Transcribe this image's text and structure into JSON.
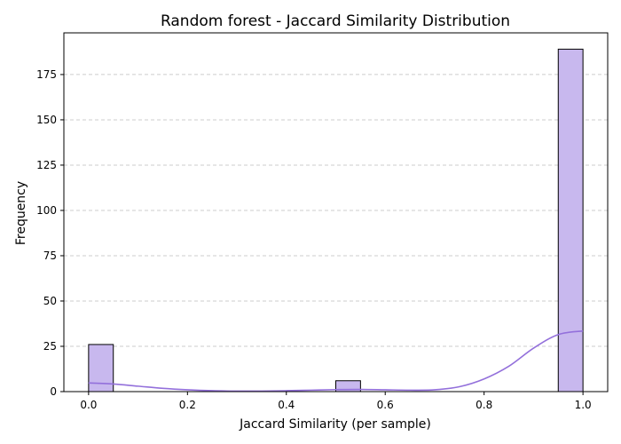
{
  "chart_data": {
    "type": "bar",
    "title": "Random forest - Jaccard Similarity Distribution",
    "xlabel": "Jaccard Similarity (per sample)",
    "ylabel": "Frequency",
    "xlim": [
      -0.05,
      1.05
    ],
    "ylim": [
      0,
      198
    ],
    "x_ticks": [
      0.0,
      0.2,
      0.4,
      0.6,
      0.8,
      1.0
    ],
    "x_tick_labels": [
      "0.0",
      "0.2",
      "0.4",
      "0.6",
      "0.8",
      "1.0"
    ],
    "y_ticks": [
      0,
      25,
      50,
      75,
      100,
      125,
      150,
      175
    ],
    "y_tick_labels": [
      "0",
      "25",
      "50",
      "75",
      "100",
      "125",
      "150",
      "175"
    ],
    "grid": "y-dashed",
    "bin_width": 0.05,
    "bins": [
      {
        "x_start": 0.0,
        "x_end": 0.05,
        "value": 26
      },
      {
        "x_start": 0.5,
        "x_end": 0.55,
        "value": 6
      },
      {
        "x_start": 0.95,
        "x_end": 1.0,
        "value": 189
      }
    ],
    "kde": {
      "x": [
        0.0,
        0.05,
        0.1,
        0.15,
        0.2,
        0.25,
        0.3,
        0.35,
        0.4,
        0.45,
        0.5,
        0.55,
        0.6,
        0.65,
        0.7,
        0.75,
        0.8,
        0.85,
        0.9,
        0.95,
        1.0
      ],
      "y": [
        4.8,
        4.2,
        3.0,
        1.8,
        1.0,
        0.5,
        0.3,
        0.3,
        0.5,
        0.8,
        1.1,
        1.2,
        1.0,
        0.8,
        1.0,
        2.7,
        7.0,
        14.0,
        24.0,
        31.5,
        33.5
      ]
    },
    "colors": {
      "bar_fill": "#c8b8ee",
      "bar_edge": "#000000",
      "kde_line": "#9370db",
      "grid": "#cccccc"
    }
  }
}
